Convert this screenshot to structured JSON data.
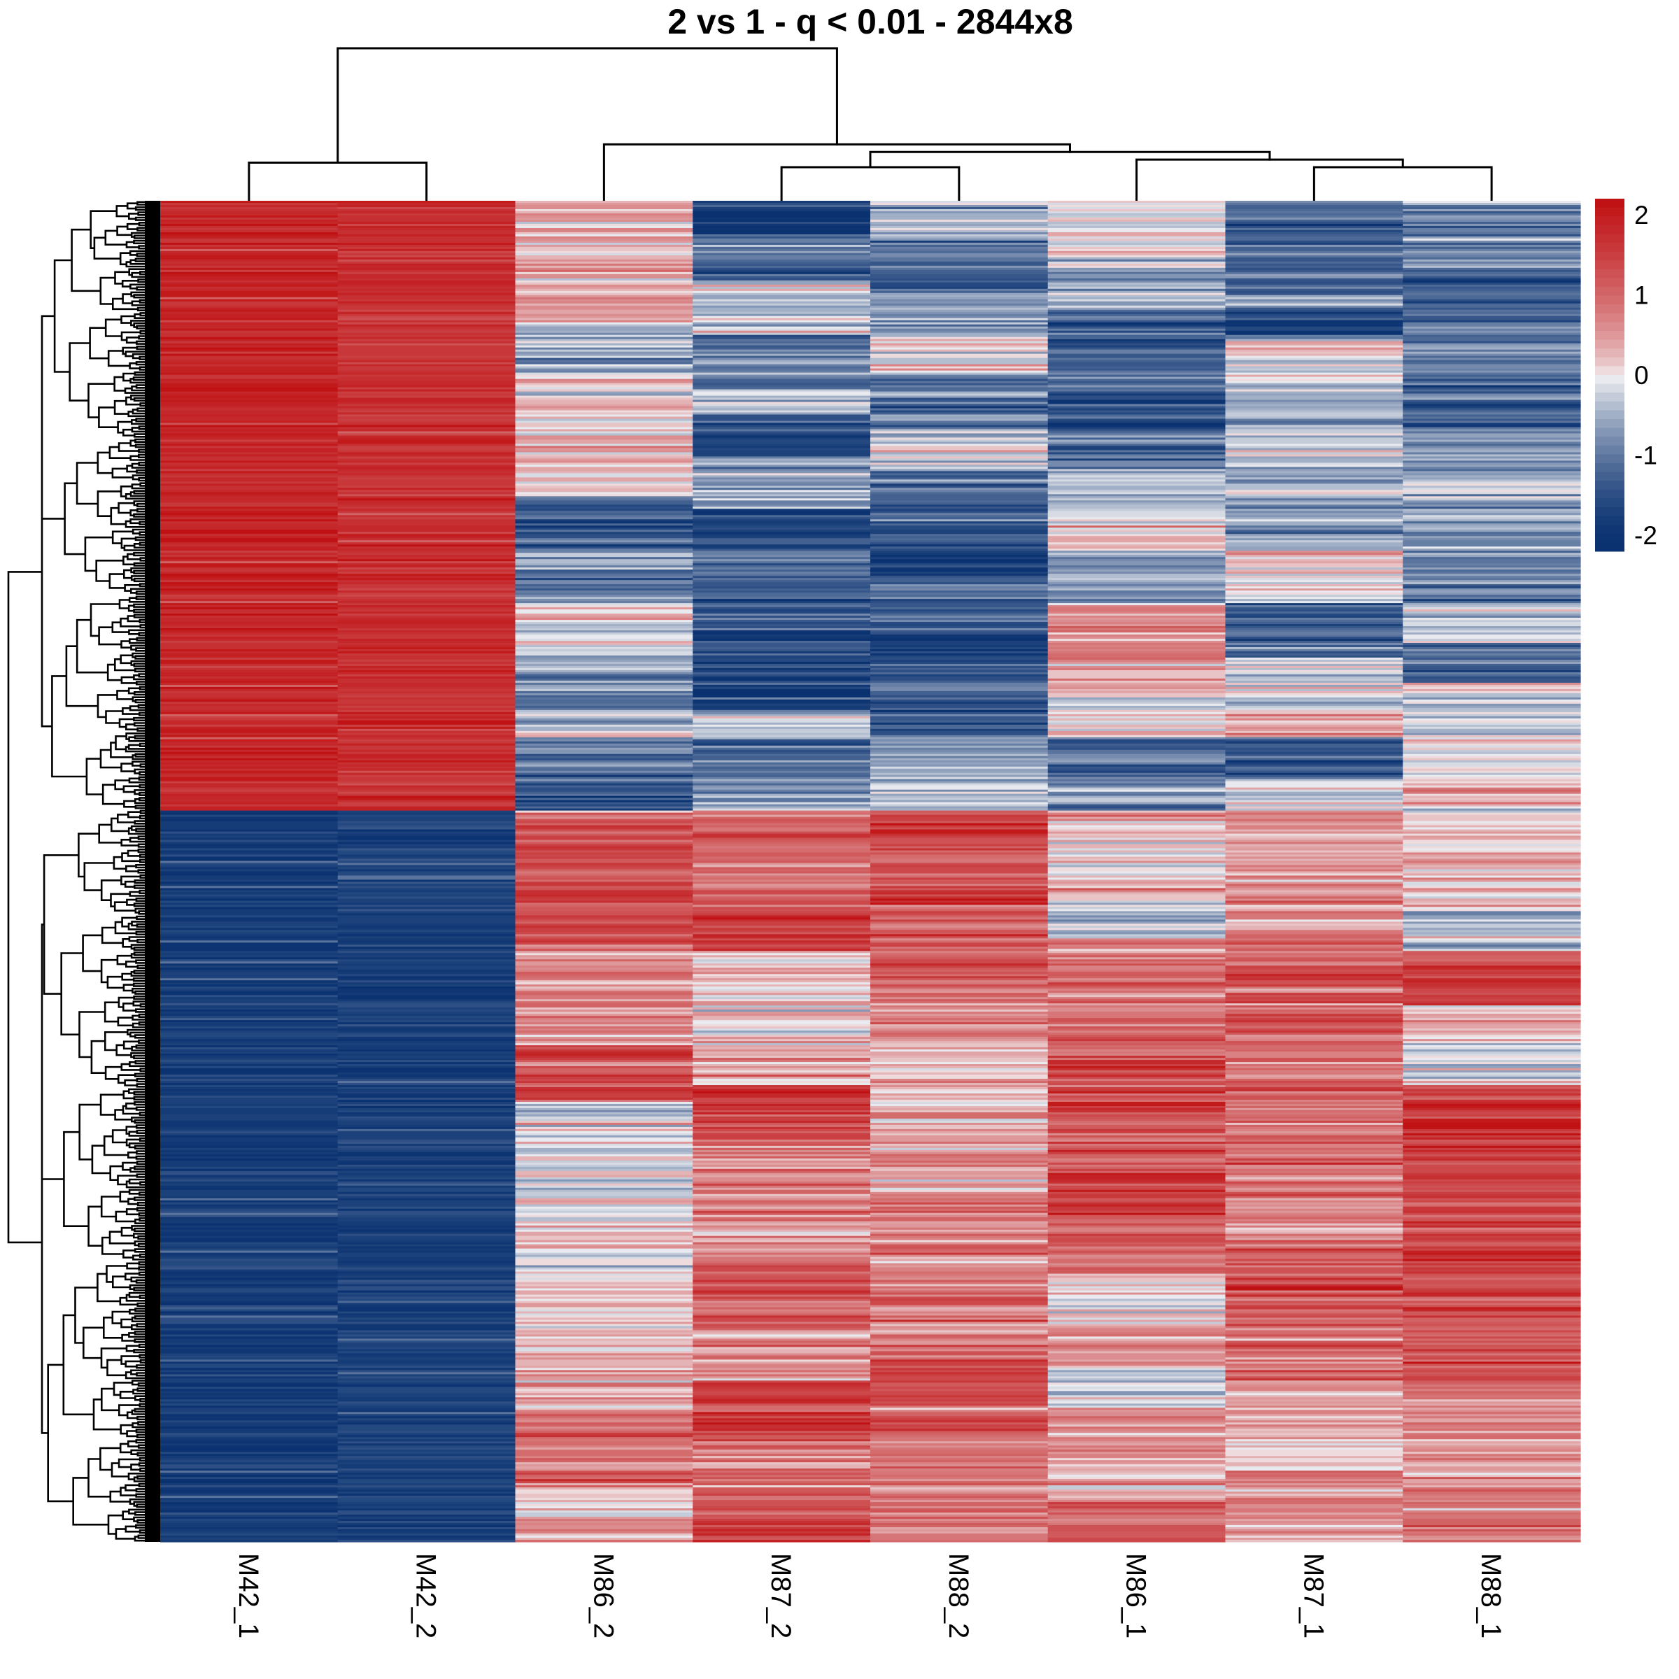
{
  "chart_data": {
    "type": "heatmap",
    "title": "2 vs 1 - q < 0.01 - 2844x8",
    "n_rows": 2844,
    "n_cols": 8,
    "column_labels": [
      "M42_1",
      "M42_2",
      "M86_2",
      "M87_2",
      "M88_2",
      "M86_1",
      "M87_1",
      "M88_1"
    ],
    "row_labels_shown": false,
    "legend": {
      "type": "colorbar",
      "placement": "top-right",
      "range": [
        -2.2,
        2.2
      ],
      "ticks": [
        2,
        1,
        0,
        -1,
        -2
      ],
      "tick_labels": [
        "2",
        "1",
        "0",
        "-1",
        "-2"
      ]
    },
    "color_scale": {
      "low": "#0a3271",
      "mid": "#f2f2f4",
      "high": "#c01214",
      "steps": 40
    },
    "row_clusters": {
      "split_fraction": 0.454,
      "note_cluster_sizes": [
        1291,
        1553
      ]
    },
    "column_dendrogram": {
      "leaves": [
        "M42_1",
        "M42_2",
        "M86_2",
        "M87_2",
        "M88_2",
        "M86_1",
        "M87_1",
        "M88_1"
      ],
      "merges": [
        {
          "left": "M86_1_group",
          "a": 6,
          "b": 7,
          "height": 0.22
        },
        {
          "a": 0,
          "b": 1,
          "height": 0.25
        },
        {
          "a": 3,
          "b": 4,
          "height": 0.22
        },
        {
          "a": 5,
          "b": "(M87_1,M88_1)",
          "height": 0.27
        },
        {
          "a": "(M87_2,M88_2)",
          "b": "(M86_1,(M87_1,M88_1))",
          "height": 0.32
        },
        {
          "a": 2,
          "b": "rest",
          "height": 0.37
        },
        {
          "a": "(M42_1,M42_2)",
          "b": "(M86_2,...)",
          "height": 1.0
        }
      ]
    },
    "column_profiles": [
      {
        "label": "M42_1",
        "segments": [
          [
            0,
            0.454,
            2.0
          ],
          [
            0.454,
            1.0,
            -1.95
          ]
        ]
      },
      {
        "label": "M42_2",
        "segments": [
          [
            0,
            0.454,
            1.85
          ],
          [
            0.454,
            1.0,
            -1.85
          ]
        ]
      },
      {
        "label": "M86_2",
        "segments": [
          [
            0,
            0.09,
            0.3
          ],
          [
            0.09,
            0.13,
            -0.6
          ],
          [
            0.13,
            0.18,
            0.1
          ],
          [
            0.18,
            0.22,
            0.15
          ],
          [
            0.22,
            0.26,
            -1.3
          ],
          [
            0.26,
            0.3,
            -0.8
          ],
          [
            0.3,
            0.35,
            -0.2
          ],
          [
            0.35,
            0.38,
            -1.0
          ],
          [
            0.38,
            0.4,
            -0.4
          ],
          [
            0.4,
            0.43,
            -1.2
          ],
          [
            0.43,
            0.454,
            -1.6
          ],
          [
            0.454,
            0.56,
            1.4
          ],
          [
            0.56,
            0.63,
            0.7
          ],
          [
            0.63,
            0.67,
            1.6
          ],
          [
            0.67,
            0.75,
            -0.3
          ],
          [
            0.75,
            0.82,
            0.0
          ],
          [
            0.82,
            0.86,
            0.3
          ],
          [
            0.86,
            0.9,
            0.6
          ],
          [
            0.9,
            0.96,
            1.0
          ],
          [
            0.96,
            0.98,
            0.05
          ],
          [
            0.98,
            1.0,
            0.7
          ]
        ]
      },
      {
        "label": "M87_2",
        "segments": [
          [
            0,
            0.025,
            -2.0
          ],
          [
            0.025,
            0.06,
            -1.2
          ],
          [
            0.06,
            0.1,
            -0.3
          ],
          [
            0.1,
            0.14,
            -1.1
          ],
          [
            0.14,
            0.16,
            -0.5
          ],
          [
            0.16,
            0.19,
            -1.6
          ],
          [
            0.19,
            0.23,
            -0.6
          ],
          [
            0.23,
            0.26,
            -1.7
          ],
          [
            0.26,
            0.29,
            -1.3
          ],
          [
            0.29,
            0.32,
            -1.4
          ],
          [
            0.32,
            0.35,
            -1.7
          ],
          [
            0.35,
            0.38,
            -1.8
          ],
          [
            0.38,
            0.4,
            -0.2
          ],
          [
            0.4,
            0.42,
            -1.1
          ],
          [
            0.42,
            0.454,
            -0.7
          ],
          [
            0.454,
            0.53,
            1.0
          ],
          [
            0.53,
            0.56,
            1.7
          ],
          [
            0.56,
            0.58,
            0.4
          ],
          [
            0.58,
            0.62,
            0.0
          ],
          [
            0.62,
            0.66,
            0.4
          ],
          [
            0.66,
            0.7,
            1.3
          ],
          [
            0.7,
            0.74,
            0.9
          ],
          [
            0.74,
            0.79,
            0.5
          ],
          [
            0.79,
            0.84,
            1.2
          ],
          [
            0.84,
            0.88,
            0.6
          ],
          [
            0.88,
            0.92,
            1.6
          ],
          [
            0.92,
            0.96,
            0.9
          ],
          [
            0.96,
            1.0,
            1.4
          ]
        ]
      },
      {
        "label": "M88_2",
        "segments": [
          [
            0,
            0.03,
            -0.4
          ],
          [
            0.03,
            0.07,
            -1.0
          ],
          [
            0.07,
            0.1,
            -0.7
          ],
          [
            0.1,
            0.13,
            -0.1
          ],
          [
            0.13,
            0.17,
            -1.0
          ],
          [
            0.17,
            0.2,
            -0.4
          ],
          [
            0.2,
            0.24,
            -1.3
          ],
          [
            0.24,
            0.28,
            -1.6
          ],
          [
            0.28,
            0.32,
            -1.2
          ],
          [
            0.32,
            0.36,
            -1.6
          ],
          [
            0.36,
            0.4,
            -1.3
          ],
          [
            0.4,
            0.43,
            -0.5
          ],
          [
            0.43,
            0.454,
            -0.4
          ],
          [
            0.454,
            0.52,
            1.5
          ],
          [
            0.52,
            0.58,
            1.2
          ],
          [
            0.58,
            0.63,
            0.8
          ],
          [
            0.63,
            0.68,
            0.2
          ],
          [
            0.68,
            0.74,
            0.6
          ],
          [
            0.74,
            0.8,
            0.8
          ],
          [
            0.8,
            0.86,
            1.0
          ],
          [
            0.86,
            0.92,
            1.3
          ],
          [
            0.92,
            0.96,
            0.8
          ],
          [
            0.96,
            1.0,
            0.9
          ]
        ]
      },
      {
        "label": "M86_1",
        "segments": [
          [
            0,
            0.05,
            0.1
          ],
          [
            0.05,
            0.08,
            -0.6
          ],
          [
            0.08,
            0.11,
            -1.5
          ],
          [
            0.11,
            0.14,
            -1.1
          ],
          [
            0.14,
            0.17,
            -1.6
          ],
          [
            0.17,
            0.2,
            -1.3
          ],
          [
            0.2,
            0.24,
            -0.4
          ],
          [
            0.24,
            0.26,
            0.3
          ],
          [
            0.26,
            0.3,
            -0.7
          ],
          [
            0.3,
            0.34,
            0.8
          ],
          [
            0.34,
            0.37,
            0.3
          ],
          [
            0.37,
            0.4,
            0.1
          ],
          [
            0.4,
            0.43,
            -1.4
          ],
          [
            0.43,
            0.454,
            -0.7
          ],
          [
            0.454,
            0.52,
            0.2
          ],
          [
            0.52,
            0.55,
            -0.3
          ],
          [
            0.55,
            0.6,
            0.9
          ],
          [
            0.6,
            0.64,
            1.0
          ],
          [
            0.64,
            0.68,
            1.4
          ],
          [
            0.68,
            0.72,
            1.0
          ],
          [
            0.72,
            0.76,
            1.6
          ],
          [
            0.76,
            0.8,
            1.1
          ],
          [
            0.8,
            0.83,
            0.1
          ],
          [
            0.83,
            0.87,
            0.5
          ],
          [
            0.87,
            0.9,
            -0.2
          ],
          [
            0.9,
            0.94,
            0.6
          ],
          [
            0.94,
            0.97,
            0.5
          ],
          [
            0.97,
            1.0,
            1.2
          ]
        ]
      },
      {
        "label": "M87_1",
        "segments": [
          [
            0,
            0.07,
            -1.2
          ],
          [
            0.07,
            0.08,
            -0.3
          ],
          [
            0.08,
            0.1,
            -1.8
          ],
          [
            0.1,
            0.14,
            -0.1
          ],
          [
            0.14,
            0.17,
            -0.6
          ],
          [
            0.17,
            0.22,
            -0.5
          ],
          [
            0.22,
            0.26,
            -0.8
          ],
          [
            0.26,
            0.3,
            0.0
          ],
          [
            0.3,
            0.34,
            -1.3
          ],
          [
            0.34,
            0.38,
            -0.3
          ],
          [
            0.38,
            0.4,
            0.4
          ],
          [
            0.4,
            0.43,
            -1.4
          ],
          [
            0.43,
            0.454,
            -0.2
          ],
          [
            0.454,
            0.55,
            0.6
          ],
          [
            0.55,
            0.62,
            1.2
          ],
          [
            0.62,
            0.66,
            0.9
          ],
          [
            0.66,
            0.72,
            1.1
          ],
          [
            0.72,
            0.78,
            0.7
          ],
          [
            0.78,
            0.84,
            1.3
          ],
          [
            0.84,
            0.88,
            1.0
          ],
          [
            0.88,
            0.94,
            0.4
          ],
          [
            0.94,
            1.0,
            0.5
          ]
        ]
      },
      {
        "label": "M88_1",
        "segments": [
          [
            0,
            0.05,
            -1.0
          ],
          [
            0.05,
            0.09,
            -1.5
          ],
          [
            0.09,
            0.13,
            -0.9
          ],
          [
            0.13,
            0.17,
            -1.3
          ],
          [
            0.17,
            0.2,
            -0.7
          ],
          [
            0.2,
            0.26,
            -0.5
          ],
          [
            0.26,
            0.3,
            -0.9
          ],
          [
            0.3,
            0.33,
            -0.2
          ],
          [
            0.33,
            0.36,
            -1.3
          ],
          [
            0.36,
            0.4,
            -0.4
          ],
          [
            0.4,
            0.44,
            0.1
          ],
          [
            0.44,
            0.454,
            0.2
          ],
          [
            0.454,
            0.53,
            0.2
          ],
          [
            0.53,
            0.56,
            -0.4
          ],
          [
            0.56,
            0.6,
            1.5
          ],
          [
            0.6,
            0.62,
            0.2
          ],
          [
            0.62,
            0.66,
            -0.1
          ],
          [
            0.66,
            0.72,
            1.6
          ],
          [
            0.72,
            0.77,
            1.2
          ],
          [
            0.77,
            0.83,
            1.4
          ],
          [
            0.83,
            0.88,
            1.3
          ],
          [
            0.88,
            0.92,
            0.7
          ],
          [
            0.92,
            0.96,
            0.6
          ],
          [
            0.96,
            1.0,
            0.8
          ]
        ]
      }
    ]
  }
}
